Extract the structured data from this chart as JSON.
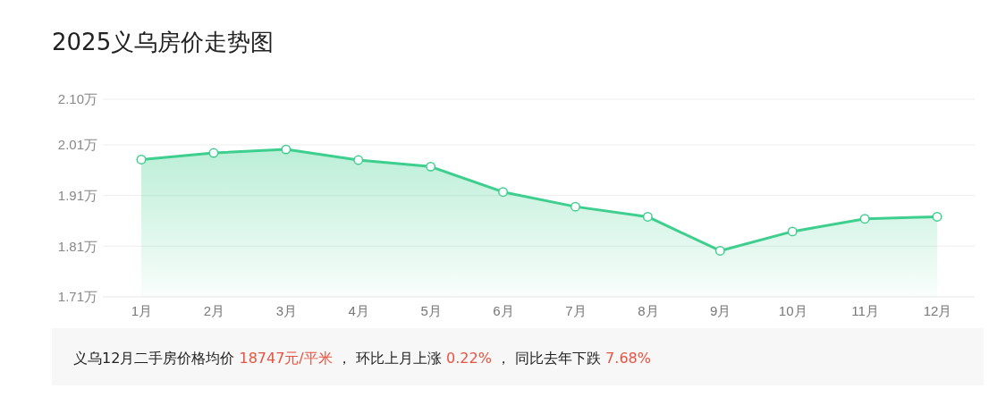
{
  "chart_data": {
    "type": "area",
    "title": "2025义乌房价走势图",
    "categories": [
      "1月",
      "2月",
      "3月",
      "4月",
      "5月",
      "6月",
      "7月",
      "8月",
      "9月",
      "10月",
      "11月",
      "12月"
    ],
    "series": [
      {
        "color": "#3ecf8e",
        "values": [
          1.981,
          1.994,
          2.001,
          1.98,
          1.967,
          1.917,
          1.888,
          1.868,
          1.801,
          1.839,
          1.864,
          1.868
        ]
      }
    ],
    "ylim": [
      1.71,
      2.1
    ],
    "yticks": [
      {
        "value": 1.71,
        "label": "1.71万"
      },
      {
        "value": 1.81,
        "label": "1.81万"
      },
      {
        "value": 1.91,
        "label": "1.91万"
      },
      {
        "value": 2.01,
        "label": "2.01万"
      },
      {
        "value": 2.1,
        "label": "2.10万"
      }
    ],
    "grid": "y",
    "marker": "circle",
    "line_style": "solid",
    "annotations": [
      "义乌12月二手房价格均价 18747元/平米 ， 环比上月上涨 0.22% ， 同比去年下跌 7.68%"
    ]
  }
}
